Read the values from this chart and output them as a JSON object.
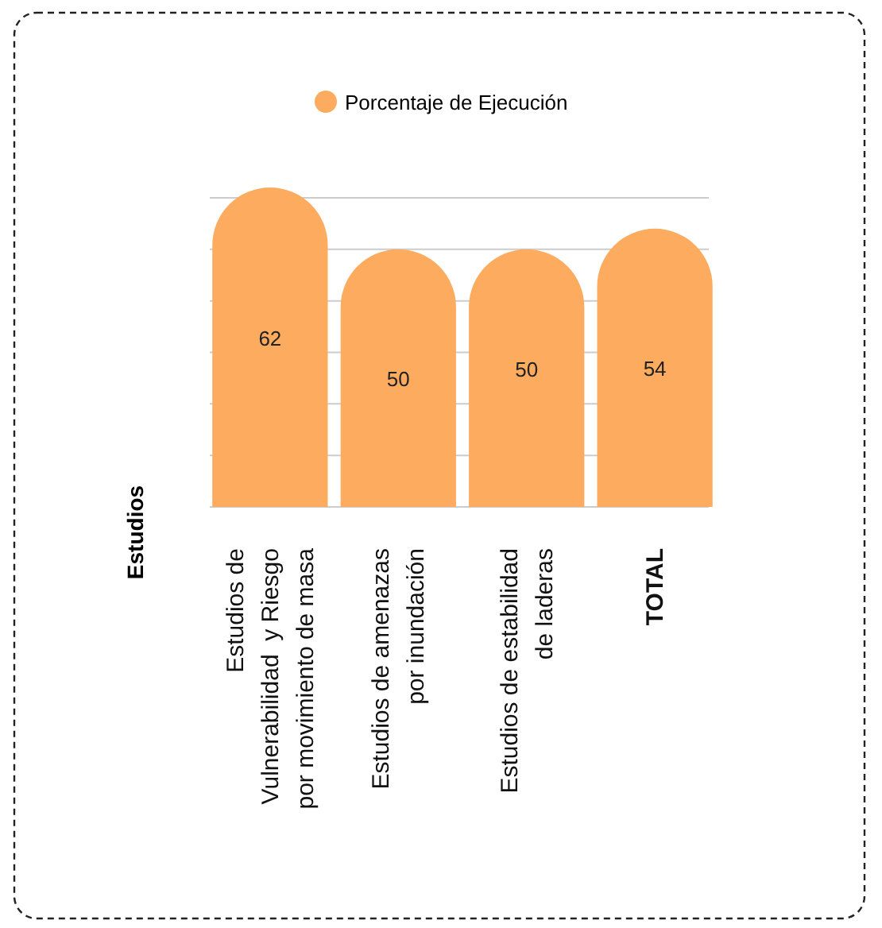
{
  "chart_data": {
    "type": "bar",
    "ylabel": "Estudios",
    "categories": [
      "Estudios de\nVulnerabilidad  y Riesgo\npor movimiento de masa",
      "Estudios de amenazas\npor inundación",
      "Estudios de estabilidad\nde laderas",
      "TOTAL"
    ],
    "series": [
      {
        "name": "Porcentaje de Ejecución",
        "color": "#fdab5f",
        "values": [
          62,
          50,
          50,
          54
        ]
      }
    ],
    "ylim": [
      0,
      62
    ],
    "yticks": [
      {
        "value": 0,
        "label": null
      },
      {
        "value": 10,
        "label": null
      },
      {
        "value": 20,
        "label": null
      },
      {
        "value": 30,
        "label": null
      },
      {
        "value": 40,
        "label": null
      },
      {
        "value": 50,
        "label": null
      },
      {
        "value": 60,
        "label": null
      }
    ],
    "grid": "y",
    "legend": "top",
    "data_labels": true,
    "tick_labels": "x"
  }
}
